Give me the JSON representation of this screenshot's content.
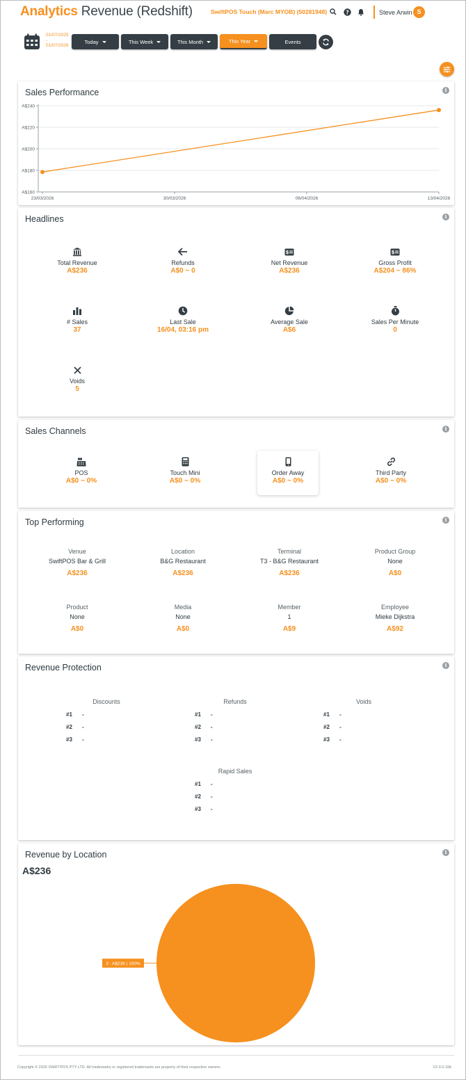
{
  "header": {
    "brand": "Analytics",
    "title": "Revenue (Redshift)",
    "store": "SwiftPOS Touch (Marc MYOB) (50281948)",
    "user_name": "Steve Arwin",
    "avatar_initial": "S"
  },
  "toolbar": {
    "date_from": "01/07/2025",
    "date_sep": "-",
    "date_to": "01/07/2026",
    "buttons": [
      {
        "label": "Today",
        "dropdown": true,
        "active": false
      },
      {
        "label": "This Week",
        "dropdown": true,
        "active": false
      },
      {
        "label": "This Month",
        "dropdown": true,
        "active": false
      },
      {
        "label": "This Year",
        "dropdown": true,
        "active": true
      },
      {
        "label": "Events",
        "dropdown": false,
        "active": false
      }
    ]
  },
  "colors": {
    "accent": "#f6901e",
    "dark": "#343e44"
  },
  "sales_performance": {
    "title": "Sales Performance",
    "chart_data": {
      "type": "line",
      "x": [
        "23/03/2026",
        "13/04/2026"
      ],
      "x_ticks": [
        "23/03/2026",
        "30/03/2026",
        "06/04/2026",
        "13/04/2026"
      ],
      "values": [
        178.5,
        236
      ],
      "y_ticks": [
        "A$160",
        "A$180",
        "A$200",
        "A$220",
        "A$240"
      ],
      "ylim": [
        160,
        240
      ],
      "grid": true
    }
  },
  "headlines": {
    "title": "Headlines",
    "items": [
      {
        "label": "Total Revenue",
        "value": "A$236",
        "icon": "bank-icon"
      },
      {
        "label": "Refunds",
        "value": "A$0 ~ 0",
        "icon": "arrow-left-icon"
      },
      {
        "label": "Net Revenue",
        "value": "A$236",
        "icon": "money-icon"
      },
      {
        "label": "Gross Profit",
        "value": "A$204 ~ 86%",
        "icon": "money-icon"
      },
      {
        "label": "# Sales",
        "value": "37",
        "icon": "bar-chart-icon"
      },
      {
        "label": "Last Sale",
        "value": "16/04, 03:16 pm",
        "icon": "clock-icon"
      },
      {
        "label": "Average Sale",
        "value": "A$6",
        "icon": "pie-chart-icon"
      },
      {
        "label": "Sales Per Minute",
        "value": "0",
        "icon": "stopwatch-icon"
      },
      {
        "label": "Voids",
        "value": "5",
        "icon": "close-icon"
      }
    ]
  },
  "channels": {
    "title": "Sales Channels",
    "items": [
      {
        "label": "POS",
        "value": "A$0 ~ 0%",
        "icon": "cash-register-icon"
      },
      {
        "label": "Touch Mini",
        "value": "A$0 ~ 0%",
        "icon": "calculator-icon"
      },
      {
        "label": "Order Away",
        "value": "A$0 ~ 0%",
        "icon": "mobile-icon"
      },
      {
        "label": "Third Party",
        "value": "A$0 ~ 0%",
        "icon": "link-icon"
      }
    ]
  },
  "top_performing": {
    "title": "Top Performing",
    "items": [
      {
        "label": "Venue",
        "name": "SwiftPOS Bar & Grill",
        "value": "A$236"
      },
      {
        "label": "Location",
        "name": "B&G Restaurant",
        "value": "A$236"
      },
      {
        "label": "Terminal",
        "name": "T3 - B&G Restaurant",
        "value": "A$236"
      },
      {
        "label": "Product Group",
        "name": "None",
        "value": "A$0"
      },
      {
        "label": "Product",
        "name": "None",
        "value": "A$0"
      },
      {
        "label": "Media",
        "name": "None",
        "value": "A$0"
      },
      {
        "label": "Member",
        "name": "1",
        "value": "A$9"
      },
      {
        "label": "Employee",
        "name": "Mieke Dijkstra",
        "value": "A$92"
      }
    ]
  },
  "revenue_protection": {
    "title": "Revenue Protection",
    "groups": [
      {
        "label": "Discounts",
        "rows": [
          {
            "rank": "#1",
            "value": "-"
          },
          {
            "rank": "#2",
            "value": "-"
          },
          {
            "rank": "#3",
            "value": "-"
          }
        ]
      },
      {
        "label": "Refunds",
        "rows": [
          {
            "rank": "#1",
            "value": "-"
          },
          {
            "rank": "#2",
            "value": "-"
          },
          {
            "rank": "#3",
            "value": "-"
          }
        ]
      },
      {
        "label": "Voids",
        "rows": [
          {
            "rank": "#1",
            "value": "-"
          },
          {
            "rank": "#2",
            "value": "-"
          },
          {
            "rank": "#3",
            "value": "-"
          }
        ]
      },
      {
        "label": "Rapid Sales",
        "rows": [
          {
            "rank": "#1",
            "value": "-"
          },
          {
            "rank": "#2",
            "value": "-"
          },
          {
            "rank": "#3",
            "value": "-"
          }
        ]
      }
    ]
  },
  "revenue_by_location": {
    "title": "Revenue by Location",
    "total": "A$236",
    "chart_data": {
      "type": "pie",
      "slices": [
        {
          "label": "3 : A$236 | 100%",
          "value": 236,
          "percent": 100
        }
      ]
    }
  },
  "footer": {
    "copyright": "Copyright © 2026 SWIFTPOS PTY LTD. All trademarks or registered trademarks are property of their respective owners.",
    "version": "V2.0.0.10b"
  }
}
